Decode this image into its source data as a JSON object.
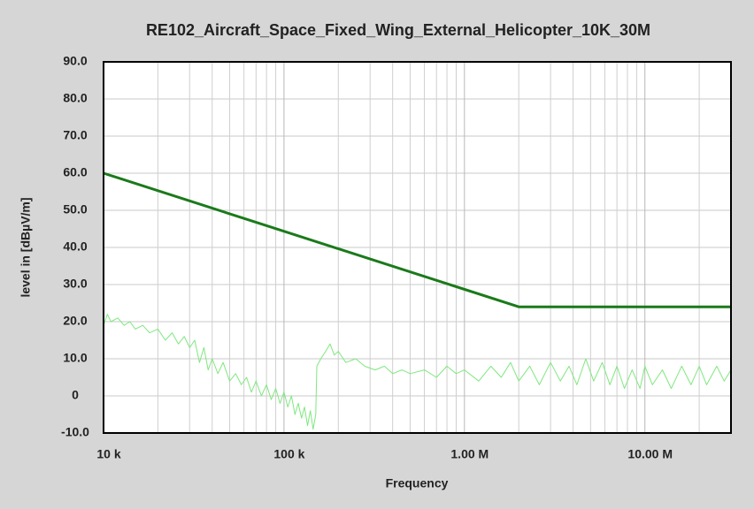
{
  "chart_data": {
    "type": "line",
    "title": "RE102_Aircraft_Space_Fixed_Wing_External_Helicopter_10K_30M",
    "xlabel": "Frequency",
    "ylabel": "level in [dBµV/m]",
    "xscale": "log",
    "xlim": [
      10000,
      30000000
    ],
    "ylim": [
      -10,
      90
    ],
    "xticks": [
      {
        "value": 10000,
        "label": "10 k"
      },
      {
        "value": 100000,
        "label": "100 k"
      },
      {
        "value": 1000000,
        "label": "1.00 M"
      },
      {
        "value": 10000000,
        "label": "10.00 M"
      }
    ],
    "yticks": [
      {
        "value": -10,
        "label": "-10.0"
      },
      0,
      {
        "value": 10,
        "label": "10.0"
      },
      {
        "value": 20,
        "label": "20.0"
      },
      {
        "value": 30,
        "label": "30.0"
      },
      {
        "value": 40,
        "label": "40.0"
      },
      {
        "value": 50,
        "label": "50.0"
      },
      {
        "value": 60,
        "label": "60.0"
      },
      {
        "value": 70,
        "label": "70.0"
      },
      {
        "value": 80,
        "label": "80.0"
      },
      {
        "value": 90,
        "label": "90.0"
      }
    ],
    "grid": true,
    "minor_grid": true,
    "series": [
      {
        "color": "#7ee87e",
        "width": 1,
        "x": [
          10000,
          10500,
          11000,
          12000,
          13000,
          14000,
          15000,
          16500,
          18000,
          20000,
          22000,
          24000,
          26000,
          28000,
          30000,
          32000,
          34000,
          36000,
          38000,
          40000,
          43000,
          46000,
          50000,
          54000,
          58000,
          62000,
          66000,
          70000,
          75000,
          80000,
          85000,
          90000,
          95000,
          100000,
          105000,
          110000,
          115000,
          120000,
          125000,
          130000,
          135000,
          140000,
          145000,
          150000,
          152000,
          160000,
          170000,
          180000,
          190000,
          200000,
          220000,
          250000,
          280000,
          320000,
          360000,
          400000,
          450000,
          500000,
          600000,
          700000,
          800000,
          900000,
          1000000,
          1200000,
          1400000,
          1600000,
          1800000,
          2000000,
          2300000,
          2600000,
          3000000,
          3400000,
          3800000,
          4200000,
          4700000,
          5200000,
          5800000,
          6400000,
          7000000,
          7700000,
          8500000,
          9400000,
          10000000,
          11000000,
          12500000,
          14000000,
          16000000,
          18000000,
          20000000,
          22000000,
          25000000,
          27500000,
          30000000
        ],
        "values": [
          19,
          22,
          20,
          21,
          19,
          20,
          18,
          19,
          17,
          18,
          15,
          17,
          14,
          16,
          13,
          15,
          9,
          13,
          7,
          10,
          6,
          9,
          4,
          6,
          3,
          5,
          1,
          4,
          0,
          3,
          -1,
          2,
          -2,
          1,
          -3,
          0,
          -5,
          -2,
          -6,
          -3,
          -8,
          -4,
          -9,
          -5,
          8,
          10,
          12,
          14,
          11,
          12,
          9,
          10,
          8,
          7,
          8,
          6,
          7,
          6,
          7,
          5,
          8,
          6,
          7,
          4,
          8,
          5,
          9,
          4,
          8,
          3,
          9,
          4,
          8,
          3,
          10,
          4,
          9,
          3,
          8,
          2,
          7,
          2,
          8,
          3,
          7,
          2,
          8,
          3,
          8,
          3,
          8,
          4,
          7
        ]
      },
      {
        "color": "#1a7a1a",
        "width": 3,
        "x": [
          10000,
          2000000,
          30000000
        ],
        "values": [
          60,
          24,
          24
        ]
      }
    ]
  }
}
